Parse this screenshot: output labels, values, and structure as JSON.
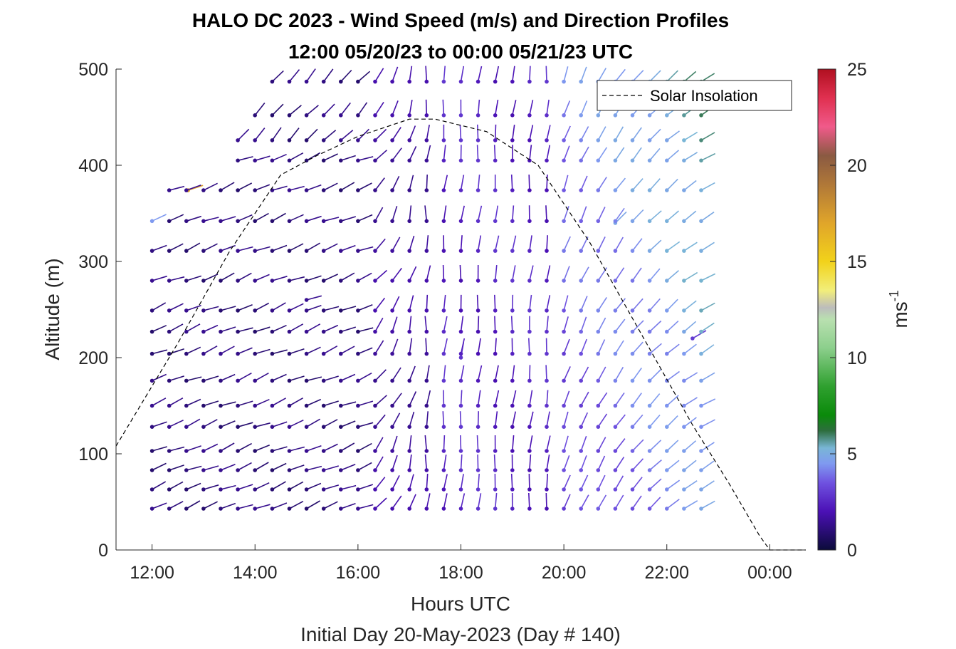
{
  "chart_data": {
    "type": "wind_barb_profile",
    "title": "HALO DC 2023 - Wind Speed (m/s) and Direction Profiles",
    "subtitle": "12:00 05/20/23 to 00:00 05/21/23  UTC",
    "xlabel": "Hours UTC",
    "xlabel2": "Initial Day 20-May-2023 (Day # 140)",
    "ylabel": "Altitude (m)",
    "xlim_hours": [
      11.3,
      24.7
    ],
    "ylim": [
      0,
      500
    ],
    "xticks": [
      {
        "h": 12,
        "label": "12:00"
      },
      {
        "h": 14,
        "label": "14:00"
      },
      {
        "h": 16,
        "label": "16:00"
      },
      {
        "h": 18,
        "label": "18:00"
      },
      {
        "h": 20,
        "label": "20:00"
      },
      {
        "h": 22,
        "label": "22:00"
      },
      {
        "h": 24,
        "label": "00:00"
      }
    ],
    "yticks": [
      0,
      100,
      200,
      300,
      400,
      500
    ],
    "colorbar": {
      "label": "ms-1",
      "range": [
        0,
        25
      ],
      "ticks": [
        0,
        5,
        10,
        15,
        20,
        25
      ],
      "stops": [
        {
          "v": 0,
          "c": "#0b0b3a"
        },
        {
          "v": 2,
          "c": "#4b10b5"
        },
        {
          "v": 3.5,
          "c": "#6f52e0"
        },
        {
          "v": 4.5,
          "c": "#7f9af0"
        },
        {
          "v": 5.3,
          "c": "#79b6d6"
        },
        {
          "v": 6.2,
          "c": "#2d6e3e"
        },
        {
          "v": 7,
          "c": "#0a8a0a"
        },
        {
          "v": 8.5,
          "c": "#2fa02f"
        },
        {
          "v": 10.5,
          "c": "#8ccf8c"
        },
        {
          "v": 12,
          "c": "#b9e0b0"
        },
        {
          "v": 12.6,
          "c": "#bcbcbc"
        },
        {
          "v": 13.5,
          "c": "#f2ee7a"
        },
        {
          "v": 15,
          "c": "#f2d21a"
        },
        {
          "v": 17,
          "c": "#e0a52a"
        },
        {
          "v": 19,
          "c": "#b07838"
        },
        {
          "v": 20.5,
          "c": "#8a5a42"
        },
        {
          "v": 22,
          "c": "#f05a8a"
        },
        {
          "v": 23.5,
          "c": "#e03050"
        },
        {
          "v": 25,
          "c": "#b01020"
        }
      ]
    },
    "legend": {
      "label": "Solar Insolation",
      "position": "top-right"
    },
    "solar_insolation": {
      "x": [
        11.3,
        12.5,
        13.5,
        14.5,
        15.2,
        16.0,
        17.0,
        17.5,
        18.5,
        19.5,
        20.5,
        21.5,
        22.5,
        23.2,
        23.8,
        24.0,
        24.7
      ],
      "y": [
        108,
        215,
        310,
        390,
        410,
        430,
        448,
        448,
        435,
        400,
        320,
        225,
        130,
        70,
        15,
        0,
        0
      ]
    },
    "wind_barbs": {
      "note": "h = hour UTC, alt = altitude m, spd = wind speed m/s, dir = flag direction deg (0 = up, clockwise)",
      "samples": [
        {
          "h": 12.0,
          "alt": 342,
          "spd": 4.5,
          "dir": 65
        },
        {
          "h": 12.7,
          "alt": 374,
          "spd": 17,
          "dir": 72
        },
        {
          "h": 15.0,
          "alt": 260,
          "spd": 1.4,
          "dir": 75
        },
        {
          "h": 18.0,
          "alt": 200,
          "spd": 2.8,
          "dir": 10
        },
        {
          "h": 21.0,
          "alt": 340,
          "spd": 4.8,
          "dir": 45
        },
        {
          "h": 22.5,
          "alt": 220,
          "spd": 3.0,
          "dir": 60
        }
      ]
    }
  }
}
